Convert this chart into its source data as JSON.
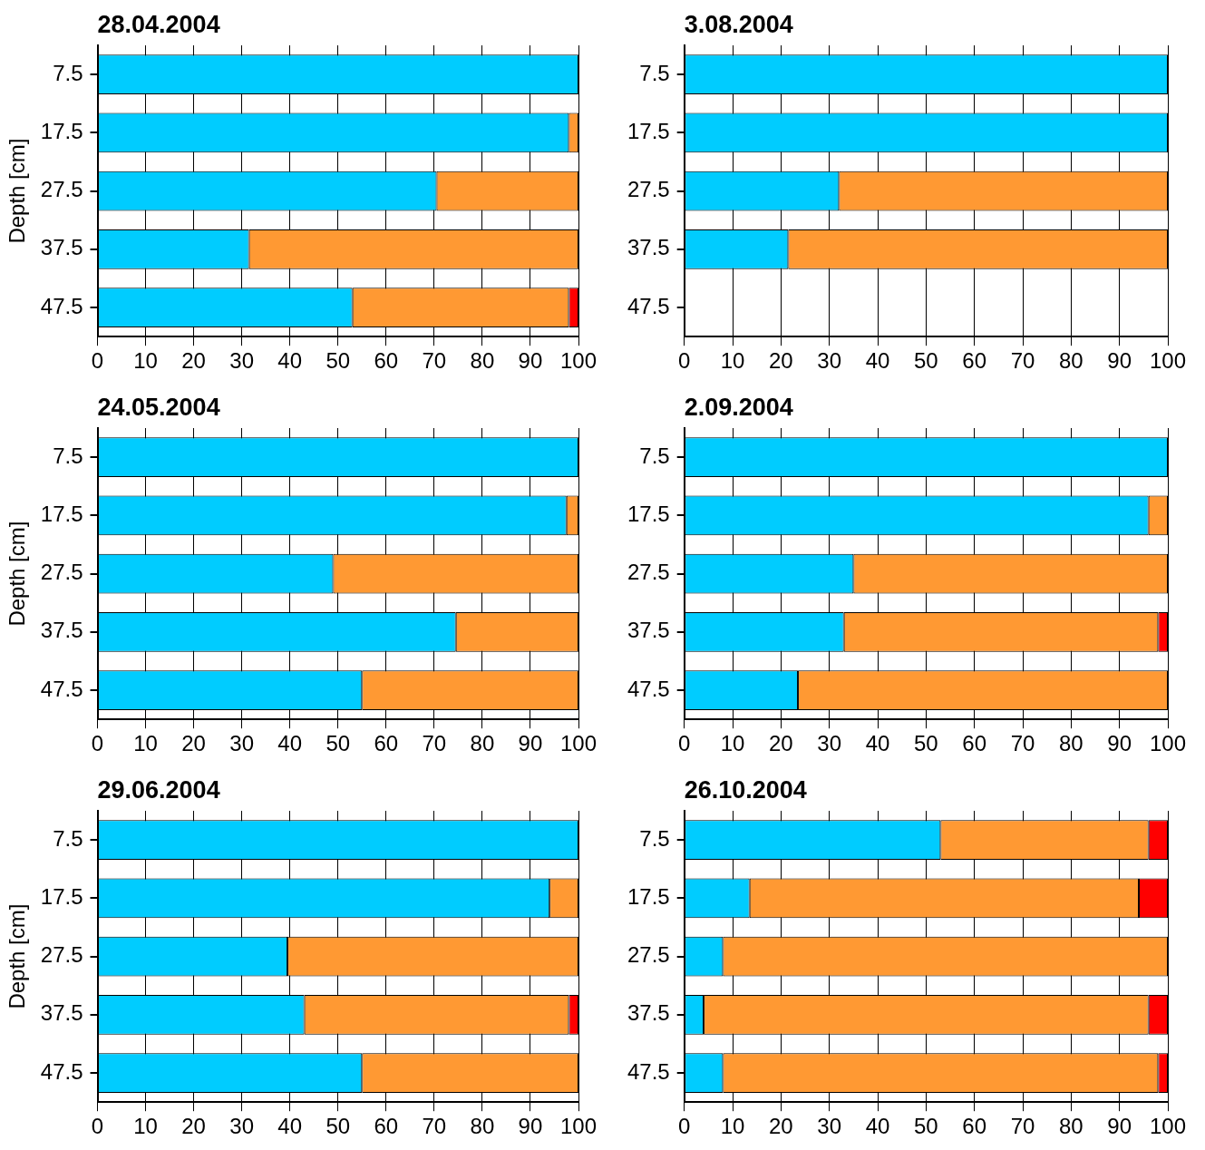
{
  "chart_data": [
    {
      "type": "bar",
      "orientation": "horizontal",
      "stacked": true,
      "title": "28.04.2004",
      "ylabel": "Depth [cm]",
      "categories": [
        "7.5",
        "17.5",
        "27.5",
        "37.5",
        "47.5"
      ],
      "series": [
        {
          "color": "#00ccff",
          "values": [
            100,
            98,
            70.5,
            31.5,
            53
          ]
        },
        {
          "color": "#ff9933",
          "values": [
            null,
            2,
            29.5,
            68.5,
            45
          ]
        },
        {
          "color": "#ff0000",
          "values": [
            null,
            null,
            null,
            null,
            2
          ]
        }
      ],
      "xlim": [
        0,
        100
      ],
      "xticks": [
        0,
        10,
        20,
        30,
        40,
        50,
        60,
        70,
        80,
        90,
        100
      ],
      "grid": "x",
      "legend": false
    },
    {
      "type": "bar",
      "orientation": "horizontal",
      "stacked": true,
      "title": "3.08.2004",
      "categories": [
        "7.5",
        "17.5",
        "27.5",
        "37.5",
        "47.5"
      ],
      "series": [
        {
          "color": "#00ccff",
          "values": [
            100,
            100,
            32,
            21.5,
            null
          ]
        },
        {
          "color": "#ff9933",
          "values": [
            null,
            null,
            68,
            78.5,
            null
          ]
        }
      ],
      "xlim": [
        0,
        100
      ],
      "xticks": [
        0,
        10,
        20,
        30,
        40,
        50,
        60,
        70,
        80,
        90,
        100
      ],
      "grid": "x",
      "legend": false
    },
    {
      "type": "bar",
      "orientation": "horizontal",
      "stacked": true,
      "title": "24.05.2004",
      "ylabel": "Depth [cm]",
      "categories": [
        "7.5",
        "17.5",
        "27.5",
        "37.5",
        "47.5"
      ],
      "series": [
        {
          "color": "#00ccff",
          "values": [
            100,
            97.5,
            49,
            74.5,
            55
          ]
        },
        {
          "color": "#ff9933",
          "values": [
            null,
            2.5,
            51,
            25.5,
            45
          ]
        }
      ],
      "xlim": [
        0,
        100
      ],
      "xticks": [
        0,
        10,
        20,
        30,
        40,
        50,
        60,
        70,
        80,
        90,
        100
      ],
      "grid": "x",
      "legend": false
    },
    {
      "type": "bar",
      "orientation": "horizontal",
      "stacked": true,
      "title": "2.09.2004",
      "categories": [
        "7.5",
        "17.5",
        "27.5",
        "37.5",
        "47.5"
      ],
      "series": [
        {
          "color": "#00ccff",
          "values": [
            100,
            96,
            35,
            33,
            23.5
          ]
        },
        {
          "color": "#ff9933",
          "values": [
            null,
            4,
            65,
            65,
            76.5
          ]
        },
        {
          "color": "#ff0000",
          "values": [
            null,
            null,
            null,
            2,
            null
          ]
        }
      ],
      "xlim": [
        0,
        100
      ],
      "xticks": [
        0,
        10,
        20,
        30,
        40,
        50,
        60,
        70,
        80,
        90,
        100
      ],
      "grid": "x",
      "legend": false
    },
    {
      "type": "bar",
      "orientation": "horizontal",
      "stacked": true,
      "title": "29.06.2004",
      "ylabel": "Depth [cm]",
      "categories": [
        "7.5",
        "17.5",
        "27.5",
        "37.5",
        "47.5"
      ],
      "series": [
        {
          "color": "#00ccff",
          "values": [
            100,
            94,
            39.5,
            43,
            55
          ]
        },
        {
          "color": "#ff9933",
          "values": [
            null,
            6,
            60.5,
            55,
            45
          ]
        },
        {
          "color": "#ff0000",
          "values": [
            null,
            null,
            null,
            2,
            null
          ]
        }
      ],
      "xlim": [
        0,
        100
      ],
      "xticks": [
        0,
        10,
        20,
        30,
        40,
        50,
        60,
        70,
        80,
        90,
        100
      ],
      "grid": "x",
      "legend": false
    },
    {
      "type": "bar",
      "orientation": "horizontal",
      "stacked": true,
      "title": "26.10.2004",
      "categories": [
        "7.5",
        "17.5",
        "27.5",
        "37.5",
        "47.5"
      ],
      "series": [
        {
          "color": "#00ccff",
          "values": [
            53,
            13.5,
            8,
            4,
            8
          ]
        },
        {
          "color": "#ff9933",
          "values": [
            43,
            80.5,
            92,
            92,
            90
          ]
        },
        {
          "color": "#ff0000",
          "values": [
            4,
            6,
            null,
            4,
            2
          ]
        }
      ],
      "xlim": [
        0,
        100
      ],
      "xticks": [
        0,
        10,
        20,
        30,
        40,
        50,
        60,
        70,
        80,
        90,
        100
      ],
      "grid": "x",
      "legend": false
    }
  ]
}
